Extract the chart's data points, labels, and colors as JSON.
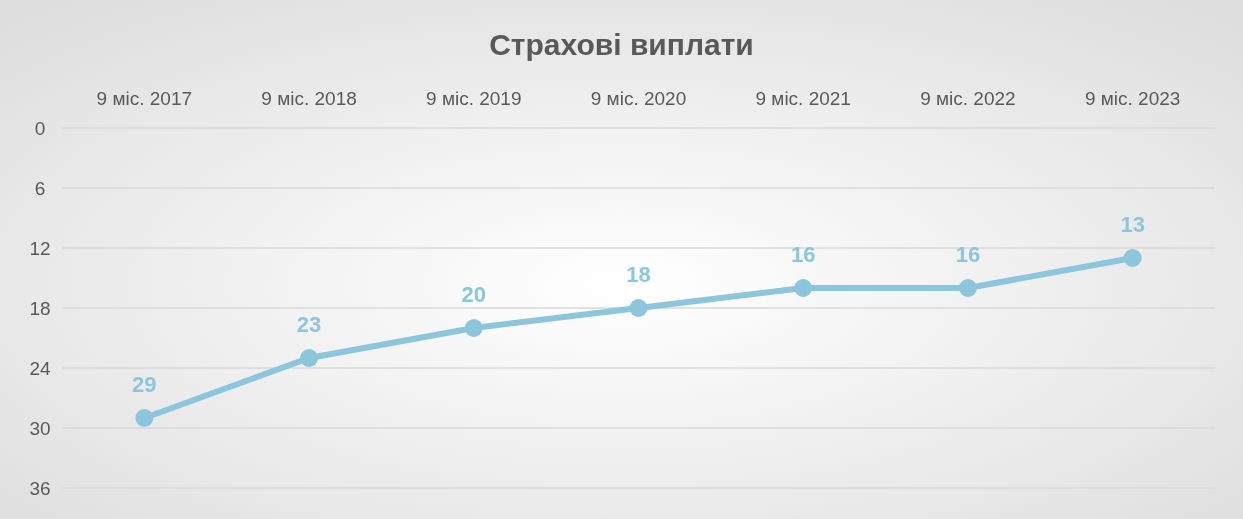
{
  "chart_data": {
    "type": "line",
    "title": "Страхові виплати",
    "categories": [
      "9 міс. 2017",
      "9 міс. 2018",
      "9 міс. 2019",
      "9 міс. 2020",
      "9 міс. 2021",
      "9 міс. 2022",
      "9 міс. 2023"
    ],
    "series": [
      {
        "color": "#8cc6dc",
        "values": [
          29,
          23,
          20,
          18,
          16,
          16,
          13
        ]
      }
    ],
    "ylim": [
      39,
      0
    ],
    "yticks": [
      0,
      6,
      12,
      18,
      24,
      30,
      36
    ],
    "grid": "y",
    "marker": "circle",
    "line_style": "solid",
    "data_labels": true
  }
}
